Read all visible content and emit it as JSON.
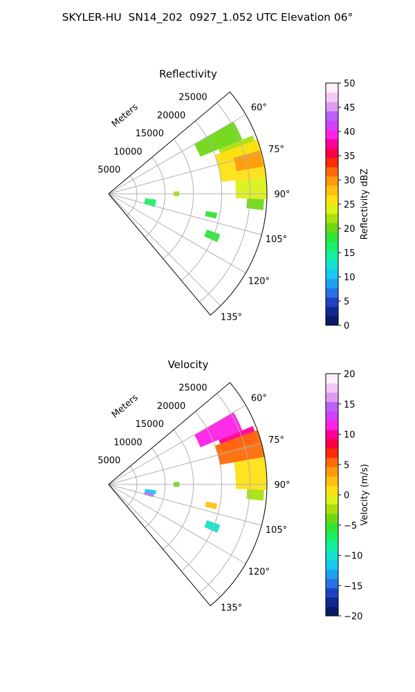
{
  "figure": {
    "title": "SKYLER-HU  SN14_202  0927_1.052 UTC Elevation 06°"
  },
  "chart_data": [
    {
      "type": "heatmap",
      "projection": "polar-sector",
      "title": "Reflectivity",
      "radial_label": "Meters",
      "radial_ticks": [
        5000,
        10000,
        15000,
        20000,
        25000
      ],
      "radial_tick_labels": [
        "5000",
        "10000",
        "15000",
        "20000",
        "25000"
      ],
      "rlim": [
        0,
        28000
      ],
      "azimuth_range_deg": [
        50,
        140
      ],
      "azimuth_ticks": [
        60,
        75,
        90,
        105,
        120,
        135
      ],
      "azimuth_tick_labels": [
        "60°",
        "75°",
        "90°",
        "105°",
        "120°",
        "135°"
      ],
      "grid": true,
      "colorbar": {
        "label": "Reflectivity dBZ",
        "vmin": 0,
        "vmax": 50,
        "ticks": [
          0,
          5,
          10,
          15,
          20,
          25,
          30,
          35,
          40,
          45,
          50
        ],
        "tick_labels": [
          "0",
          "5",
          "10",
          "15",
          "20",
          "25",
          "30",
          "35",
          "40",
          "45",
          "50"
        ],
        "colors": [
          "#0a1a6a",
          "#0d2a8c",
          "#1d44c4",
          "#2870e8",
          "#1fa0f0",
          "#19c8f0",
          "#16e0d0",
          "#14f0a0",
          "#1cef6a",
          "#2ee636",
          "#6fd814",
          "#a9e010",
          "#dcf01a",
          "#ffe014",
          "#ffc010",
          "#ff9a0c",
          "#ff6a08",
          "#ff2a06",
          "#ff0044",
          "#ff0099",
          "#ff22e6",
          "#d040ff",
          "#b862ff",
          "#e09af0",
          "#f4c8f4",
          "#fdf0fc"
        ]
      },
      "echoes": [
        {
          "az_min": 60,
          "az_max": 68,
          "r_min": 17500,
          "r_max": 25500,
          "value": 21
        },
        {
          "az_min": 68,
          "az_max": 74,
          "r_min": 21000,
          "r_max": 27500,
          "value": 22
        },
        {
          "az_min": 70,
          "az_max": 84,
          "r_min": 20000,
          "r_max": 28000,
          "value": 25
        },
        {
          "az_min": 74,
          "az_max": 80,
          "r_min": 23000,
          "r_max": 27800,
          "value": 30
        },
        {
          "az_min": 84,
          "az_max": 92,
          "r_min": 22500,
          "r_max": 28000,
          "value": 24
        },
        {
          "az_min": 92,
          "az_max": 96,
          "r_min": 24500,
          "r_max": 27500,
          "value": 20
        },
        {
          "az_min": 97,
          "az_max": 106,
          "r_min": 6500,
          "r_max": 8500,
          "value": 16
        },
        {
          "az_min": 110,
          "az_max": 114,
          "r_min": 18500,
          "r_max": 21000,
          "value": 19
        },
        {
          "az_min": 100,
          "az_max": 103,
          "r_min": 17500,
          "r_max": 19500,
          "value": 18
        },
        {
          "az_min": 88,
          "az_max": 92,
          "r_min": 11500,
          "r_max": 12500,
          "value": 22
        }
      ]
    },
    {
      "type": "heatmap",
      "projection": "polar-sector",
      "title": "Velocity",
      "radial_label": "Meters",
      "radial_ticks": [
        5000,
        10000,
        15000,
        20000,
        25000
      ],
      "radial_tick_labels": [
        "5000",
        "10000",
        "15000",
        "20000",
        "25000"
      ],
      "rlim": [
        0,
        28000
      ],
      "azimuth_range_deg": [
        50,
        140
      ],
      "azimuth_ticks": [
        60,
        75,
        90,
        105,
        120,
        135
      ],
      "azimuth_tick_labels": [
        "60°",
        "75°",
        "90°",
        "105°",
        "120°",
        "135°"
      ],
      "grid": true,
      "colorbar": {
        "label": "Velocity (m/s)",
        "vmin": -20,
        "vmax": 20,
        "ticks": [
          -20,
          -15,
          -10,
          -5,
          0,
          5,
          10,
          15,
          20
        ],
        "tick_labels": [
          "−20",
          "−15",
          "−10",
          "−5",
          "0",
          "5",
          "10",
          "15",
          "20"
        ],
        "colors": [
          "#0a1a6a",
          "#0d2a8c",
          "#1d44c4",
          "#2870e8",
          "#1fa0f0",
          "#19c8f0",
          "#16e0d0",
          "#14f0a0",
          "#1cef6a",
          "#2ee636",
          "#6fd814",
          "#a9e010",
          "#dcf01a",
          "#ffe014",
          "#ffc010",
          "#ff9a0c",
          "#ff6a08",
          "#ff2a06",
          "#ff0044",
          "#ff0099",
          "#ff22e6",
          "#d040ff",
          "#b862ff",
          "#e09af0",
          "#f4c8f4",
          "#fdf0fc"
        ]
      },
      "echoes": [
        {
          "az_min": 60,
          "az_max": 68,
          "r_min": 17500,
          "r_max": 25500,
          "value": 11
        },
        {
          "az_min": 68,
          "az_max": 74,
          "r_min": 21000,
          "r_max": 27500,
          "value": 10
        },
        {
          "az_min": 70,
          "az_max": 80,
          "r_min": 20000,
          "r_max": 28000,
          "value": 6
        },
        {
          "az_min": 80,
          "az_max": 92,
          "r_min": 22500,
          "r_max": 28000,
          "value": 1
        },
        {
          "az_min": 92,
          "az_max": 96,
          "r_min": 24500,
          "r_max": 27500,
          "value": -3
        },
        {
          "az_min": 97,
          "az_max": 102,
          "r_min": 6500,
          "r_max": 8500,
          "value": -11
        },
        {
          "az_min": 102,
          "az_max": 106,
          "r_min": 6500,
          "r_max": 8200,
          "value": 15
        },
        {
          "az_min": 110,
          "az_max": 114,
          "r_min": 18500,
          "r_max": 21000,
          "value": -10
        },
        {
          "az_min": 100,
          "az_max": 103,
          "r_min": 17500,
          "r_max": 19500,
          "value": 2
        },
        {
          "az_min": 88,
          "az_max": 92,
          "r_min": 11500,
          "r_max": 12500,
          "value": -4
        }
      ]
    }
  ]
}
